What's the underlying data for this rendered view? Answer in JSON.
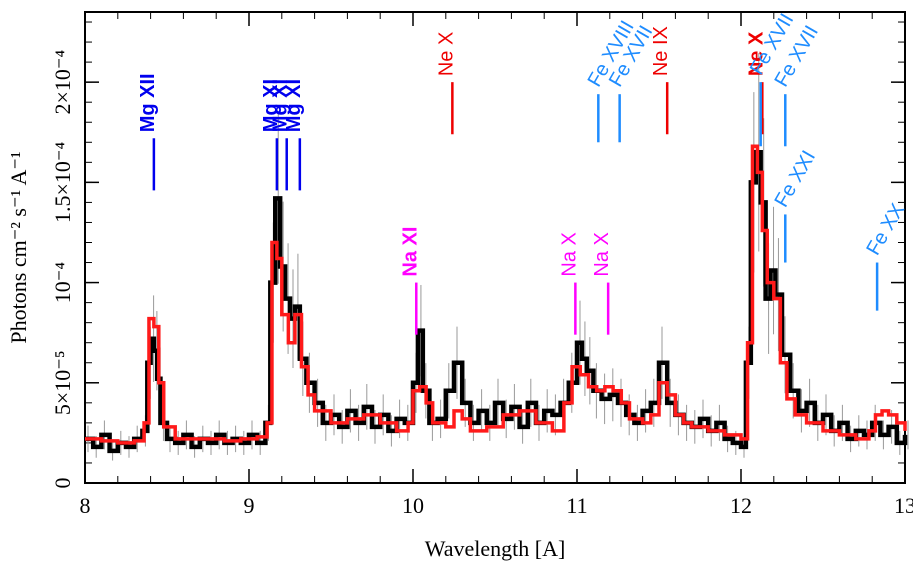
{
  "chart_data": {
    "type": "line",
    "xlabel": "Wavelength [A]",
    "ylabel": "Photons cm⁻² s⁻¹ A⁻¹",
    "xlim": [
      8,
      13
    ],
    "ylim": [
      0,
      0.000235
    ],
    "x_ticks": [
      {
        "value": 8,
        "label": "8"
      },
      {
        "value": 9,
        "label": "9"
      },
      {
        "value": 10,
        "label": "10"
      },
      {
        "value": 11,
        "label": "11"
      },
      {
        "value": 12,
        "label": "12"
      },
      {
        "value": 13,
        "label": "13"
      }
    ],
    "y_ticks": [
      {
        "value": 0,
        "label": "0"
      },
      {
        "value": 5e-05,
        "label": "5×10⁻⁵"
      },
      {
        "value": 0.0001,
        "label": "10⁻⁴"
      },
      {
        "value": 0.00015,
        "label": "1.5×10⁻⁴"
      },
      {
        "value": 0.0002,
        "label": "2×10⁻⁴"
      }
    ],
    "series": [
      {
        "color": "#000000",
        "style": "data-histogram",
        "points": [
          [
            8.0,
            2.2e-05
          ],
          [
            8.05,
            1.8e-05
          ],
          [
            8.1,
            2.4e-05
          ],
          [
            8.15,
            1.6e-05
          ],
          [
            8.2,
            2e-05
          ],
          [
            8.25,
            1.8e-05
          ],
          [
            8.3,
            2.2e-05
          ],
          [
            8.35,
            2.6e-05
          ],
          [
            8.38,
            6e-05
          ],
          [
            8.4,
            7.2e-05
          ],
          [
            8.42,
            6.6e-05
          ],
          [
            8.44,
            5.2e-05
          ],
          [
            8.46,
            3e-05
          ],
          [
            8.5,
            2.2e-05
          ],
          [
            8.55,
            2e-05
          ],
          [
            8.6,
            2.4e-05
          ],
          [
            8.65,
            1.8e-05
          ],
          [
            8.7,
            2.2e-05
          ],
          [
            8.75,
            2e-05
          ],
          [
            8.8,
            2.4e-05
          ],
          [
            8.85,
            2e-05
          ],
          [
            8.9,
            2.2e-05
          ],
          [
            8.95,
            2e-05
          ],
          [
            9.0,
            2.4e-05
          ],
          [
            9.05,
            2e-05
          ],
          [
            9.1,
            3e-05
          ],
          [
            9.13,
            0.0001
          ],
          [
            9.16,
            0.000142
          ],
          [
            9.19,
            0.000108
          ],
          [
            9.22,
            9.2e-05
          ],
          [
            9.25,
            8.2e-05
          ],
          [
            9.28,
            8.8e-05
          ],
          [
            9.31,
            6.2e-05
          ],
          [
            9.35,
            5e-05
          ],
          [
            9.4,
            4e-05
          ],
          [
            9.45,
            3e-05
          ],
          [
            9.5,
            3.4e-05
          ],
          [
            9.55,
            2.8e-05
          ],
          [
            9.6,
            3.6e-05
          ],
          [
            9.65,
            3e-05
          ],
          [
            9.7,
            3.8e-05
          ],
          [
            9.75,
            2.8e-05
          ],
          [
            9.8,
            3.4e-05
          ],
          [
            9.85,
            2.6e-05
          ],
          [
            9.9,
            3.2e-05
          ],
          [
            9.95,
            3e-05
          ],
          [
            10.0,
            5e-05
          ],
          [
            10.03,
            7.6e-05
          ],
          [
            10.06,
            4.6e-05
          ],
          [
            10.1,
            3e-05
          ],
          [
            10.15,
            3.2e-05
          ],
          [
            10.2,
            4.6e-05
          ],
          [
            10.25,
            6e-05
          ],
          [
            10.3,
            4e-05
          ],
          [
            10.35,
            3e-05
          ],
          [
            10.4,
            3.6e-05
          ],
          [
            10.45,
            3e-05
          ],
          [
            10.5,
            4e-05
          ],
          [
            10.55,
            3.2e-05
          ],
          [
            10.6,
            3.8e-05
          ],
          [
            10.65,
            2.8e-05
          ],
          [
            10.7,
            4e-05
          ],
          [
            10.75,
            3e-05
          ],
          [
            10.8,
            3.6e-05
          ],
          [
            10.85,
            3.4e-05
          ],
          [
            10.9,
            4e-05
          ],
          [
            10.95,
            5e-05
          ],
          [
            11.0,
            7e-05
          ],
          [
            11.03,
            6.2e-05
          ],
          [
            11.06,
            5.6e-05
          ],
          [
            11.1,
            4.6e-05
          ],
          [
            11.15,
            4.2e-05
          ],
          [
            11.2,
            4.4e-05
          ],
          [
            11.25,
            4e-05
          ],
          [
            11.3,
            3.4e-05
          ],
          [
            11.35,
            3e-05
          ],
          [
            11.4,
            3.6e-05
          ],
          [
            11.45,
            4e-05
          ],
          [
            11.5,
            6e-05
          ],
          [
            11.55,
            4e-05
          ],
          [
            11.6,
            3.4e-05
          ],
          [
            11.65,
            3e-05
          ],
          [
            11.7,
            2.8e-05
          ],
          [
            11.75,
            3.2e-05
          ],
          [
            11.8,
            2.6e-05
          ],
          [
            11.85,
            3e-05
          ],
          [
            11.9,
            2.2e-05
          ],
          [
            11.95,
            2e-05
          ],
          [
            12.0,
            1.8e-05
          ],
          [
            12.03,
            6e-05
          ],
          [
            12.06,
            0.00015
          ],
          [
            12.09,
            0.000165
          ],
          [
            12.12,
            0.00014
          ],
          [
            12.15,
            9.2e-05
          ],
          [
            12.18,
            0.000106
          ],
          [
            12.21,
            9.4e-05
          ],
          [
            12.25,
            6.4e-05
          ],
          [
            12.3,
            4.6e-05
          ],
          [
            12.35,
            3.6e-05
          ],
          [
            12.4,
            4e-05
          ],
          [
            12.45,
            3e-05
          ],
          [
            12.5,
            3.4e-05
          ],
          [
            12.55,
            2.6e-05
          ],
          [
            12.6,
            3e-05
          ],
          [
            12.65,
            2.2e-05
          ],
          [
            12.7,
            2.6e-05
          ],
          [
            12.75,
            2.4e-05
          ],
          [
            12.8,
            3e-05
          ],
          [
            12.85,
            2.4e-05
          ],
          [
            12.9,
            2.8e-05
          ],
          [
            12.95,
            2e-05
          ],
          [
            13.0,
            2.4e-05
          ]
        ]
      },
      {
        "color": "#ff1a1a",
        "style": "model-histogram",
        "points": [
          [
            8.0,
            2.2e-05
          ],
          [
            8.1,
            2.1e-05
          ],
          [
            8.2,
            2e-05
          ],
          [
            8.3,
            2.1e-05
          ],
          [
            8.36,
            3e-05
          ],
          [
            8.39,
            8.2e-05
          ],
          [
            8.42,
            7.8e-05
          ],
          [
            8.45,
            5e-05
          ],
          [
            8.48,
            2.8e-05
          ],
          [
            8.55,
            2.2e-05
          ],
          [
            8.65,
            2.2e-05
          ],
          [
            8.75,
            2.2e-05
          ],
          [
            8.85,
            2.1e-05
          ],
          [
            8.95,
            2.2e-05
          ],
          [
            9.05,
            2.3e-05
          ],
          [
            9.11,
            3e-05
          ],
          [
            9.14,
            0.00012
          ],
          [
            9.17,
            0.000112
          ],
          [
            9.2,
            8.4e-05
          ],
          [
            9.24,
            7e-05
          ],
          [
            9.28,
            8.4e-05
          ],
          [
            9.32,
            5.8e-05
          ],
          [
            9.36,
            4.4e-05
          ],
          [
            9.4,
            3.6e-05
          ],
          [
            9.5,
            3e-05
          ],
          [
            9.6,
            3.2e-05
          ],
          [
            9.7,
            3.4e-05
          ],
          [
            9.8,
            3e-05
          ],
          [
            9.9,
            2.6e-05
          ],
          [
            9.97,
            3e-05
          ],
          [
            10.0,
            4.6e-05
          ],
          [
            10.04,
            4.8e-05
          ],
          [
            10.08,
            4e-05
          ],
          [
            10.12,
            3e-05
          ],
          [
            10.2,
            2.8e-05
          ],
          [
            10.25,
            3.6e-05
          ],
          [
            10.3,
            3.2e-05
          ],
          [
            10.35,
            2.6e-05
          ],
          [
            10.45,
            2.8e-05
          ],
          [
            10.55,
            3.4e-05
          ],
          [
            10.65,
            3.6e-05
          ],
          [
            10.75,
            3e-05
          ],
          [
            10.85,
            2.6e-05
          ],
          [
            10.92,
            4e-05
          ],
          [
            10.97,
            5.8e-05
          ],
          [
            11.02,
            5.4e-05
          ],
          [
            11.07,
            4.8e-05
          ],
          [
            11.12,
            4.6e-05
          ],
          [
            11.17,
            4.8e-05
          ],
          [
            11.22,
            4.6e-05
          ],
          [
            11.27,
            4e-05
          ],
          [
            11.32,
            3.2e-05
          ],
          [
            11.4,
            3e-05
          ],
          [
            11.45,
            3.4e-05
          ],
          [
            11.5,
            5e-05
          ],
          [
            11.55,
            4.4e-05
          ],
          [
            11.6,
            3.4e-05
          ],
          [
            11.65,
            3e-05
          ],
          [
            11.7,
            2.8e-05
          ],
          [
            11.8,
            2.6e-05
          ],
          [
            11.9,
            2.4e-05
          ],
          [
            12.0,
            2.2e-05
          ],
          [
            12.04,
            7e-05
          ],
          [
            12.07,
            0.000168
          ],
          [
            12.1,
            0.000155
          ],
          [
            12.13,
            0.000126
          ],
          [
            12.16,
            0.0001
          ],
          [
            12.2,
            9.2e-05
          ],
          [
            12.24,
            6e-05
          ],
          [
            12.28,
            4.2e-05
          ],
          [
            12.33,
            3.4e-05
          ],
          [
            12.4,
            3e-05
          ],
          [
            12.5,
            2.6e-05
          ],
          [
            12.6,
            2.4e-05
          ],
          [
            12.7,
            2.2e-05
          ],
          [
            12.78,
            2.6e-05
          ],
          [
            12.82,
            3.4e-05
          ],
          [
            12.86,
            3.6e-05
          ],
          [
            12.9,
            3.4e-05
          ],
          [
            12.95,
            3e-05
          ],
          [
            13.0,
            2.6e-05
          ]
        ]
      }
    ],
    "line_annotations": [
      {
        "label": "Mg XII",
        "x": 8.42,
        "y_bottom": 0.000146,
        "y_top": 0.000172,
        "color": "#0000ee",
        "bold": true
      },
      {
        "label": "Mg XI",
        "x": 9.17,
        "y_bottom": 0.000146,
        "y_top": 0.000172,
        "color": "#0000ee",
        "bold": true
      },
      {
        "label": "Mg XI",
        "x": 9.23,
        "y_bottom": 0.000146,
        "y_top": 0.000172,
        "color": "#0000ee",
        "bold": true
      },
      {
        "label": "Mg XI",
        "x": 9.31,
        "y_bottom": 0.000146,
        "y_top": 0.000172,
        "color": "#0000ee",
        "bold": true
      },
      {
        "label": "Na XI",
        "x": 10.02,
        "y_bottom": 7.4e-05,
        "y_top": 0.0001,
        "color": "#ff00ff",
        "bold": true
      },
      {
        "label": "Ne X",
        "x": 10.24,
        "y_bottom": 0.000174,
        "y_top": 0.0002,
        "color": "#ee0000",
        "bold": false
      },
      {
        "label": "Na X",
        "x": 10.99,
        "y_bottom": 7.4e-05,
        "y_top": 0.0001,
        "color": "#ff00ff",
        "bold": false
      },
      {
        "label": "Na X",
        "x": 11.19,
        "y_bottom": 7.4e-05,
        "y_top": 0.0001,
        "color": "#ff00ff",
        "bold": false
      },
      {
        "label": "Fe XVIII",
        "x": 11.13,
        "y_bottom": 0.00017,
        "y_top": 0.000194,
        "color": "#1e8cff",
        "bold": false,
        "rotate": -60
      },
      {
        "label": "Fe XVII",
        "x": 11.26,
        "y_bottom": 0.00017,
        "y_top": 0.000194,
        "color": "#1e8cff",
        "bold": false,
        "rotate": -60
      },
      {
        "label": "Ne IX",
        "x": 11.55,
        "y_bottom": 0.000174,
        "y_top": 0.0002,
        "color": "#ee0000",
        "bold": false
      },
      {
        "label": "Ne X",
        "x": 12.13,
        "y_bottom": 0.000174,
        "y_top": 0.0002,
        "color": "#ee0000",
        "bold": true
      },
      {
        "label": "Fe XVII",
        "x": 12.12,
        "y_bottom": 0.000168,
        "y_top": 0.0002,
        "color": "#1e8cff",
        "bold": false,
        "rotate": -60
      },
      {
        "label": "Fe XVII",
        "x": 12.27,
        "y_bottom": 0.000168,
        "y_top": 0.000194,
        "color": "#1e8cff",
        "bold": false,
        "rotate": -60
      },
      {
        "label": "Fe XXI",
        "x": 12.27,
        "y_bottom": 0.00011,
        "y_top": 0.000134,
        "color": "#1e8cff",
        "bold": false,
        "rotate": -60
      },
      {
        "label": "Fe XX",
        "x": 12.83,
        "y_bottom": 8.6e-05,
        "y_top": 0.00011,
        "color": "#1e8cff",
        "bold": false,
        "rotate": -60
      }
    ]
  }
}
